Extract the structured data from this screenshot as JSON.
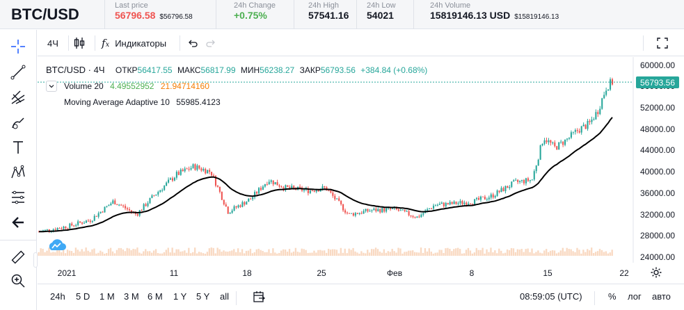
{
  "header": {
    "pair": "BTC/USD",
    "last_price_label": "Last price",
    "last_price": "56796.58",
    "last_price_sub": "$56796.58",
    "change_label": "24h Change",
    "change": "+0.75%",
    "high_label": "24h High",
    "high": "57541.16",
    "low_label": "24h Low",
    "low": "54021",
    "volume_label": "24h Volume",
    "volume": "15819146.13 USD",
    "volume_sub": "$15819146.13"
  },
  "toolbar": {
    "interval": "4Ч",
    "indicators_label": "Индикаторы"
  },
  "legend": {
    "symbol": "BTC/USD · 4Ч",
    "open_label": "ОТКР",
    "open": "56417.55",
    "high_label": "МАКС",
    "high": "56817.99",
    "low_label": "МИН",
    "low": "56238.27",
    "close_label": "ЗАКР",
    "close": "56793.56",
    "change": "+384.84 (+0.68%)",
    "volume_name": "Volume 20",
    "volume_v1": "4.49552952",
    "volume_v2": "21.94714160",
    "ma_name": "Moving Average Adaptive 10",
    "ma_value": "55985.4123"
  },
  "price_axis": {
    "ticks": [
      "60000.00",
      "56000.00",
      "52000.00",
      "48000.00",
      "44000.00",
      "40000.00",
      "36000.00",
      "32000.00",
      "28000.00",
      "24000.00"
    ],
    "last_label": "56793.56"
  },
  "time_axis": {
    "ticks": [
      "2021",
      "11",
      "18",
      "25",
      "Фев",
      "8",
      "15",
      "22"
    ]
  },
  "bottom": {
    "ranges": [
      "24h",
      "5 D",
      "1 M",
      "3 M",
      "6 M",
      "1 Y",
      "5 Y",
      "all"
    ],
    "clock": "08:59:05 (UTC)",
    "percent": "%",
    "log": "лог",
    "auto": "авто"
  },
  "colors": {
    "up": "#26a69a",
    "down": "#ef5350",
    "ma": "#000000",
    "volume": "#f7c9a8",
    "accent": "#2962ff"
  },
  "chart_data": {
    "type": "candlestick",
    "interval": "4h",
    "price_range": [
      23500,
      61500
    ],
    "key_closes": [
      {
        "t": 0,
        "v": 28800
      },
      {
        "t": 0.05,
        "v": 29800
      },
      {
        "t": 0.09,
        "v": 31000
      },
      {
        "t": 0.13,
        "v": 34500
      },
      {
        "t": 0.17,
        "v": 32000
      },
      {
        "t": 0.2,
        "v": 35500
      },
      {
        "t": 0.24,
        "v": 39500
      },
      {
        "t": 0.27,
        "v": 41000
      },
      {
        "t": 0.3,
        "v": 40000
      },
      {
        "t": 0.33,
        "v": 32500
      },
      {
        "t": 0.37,
        "v": 35000
      },
      {
        "t": 0.4,
        "v": 38500
      },
      {
        "t": 0.43,
        "v": 37000
      },
      {
        "t": 0.47,
        "v": 36500
      },
      {
        "t": 0.5,
        "v": 37000
      },
      {
        "t": 0.54,
        "v": 32000
      },
      {
        "t": 0.58,
        "v": 32800
      },
      {
        "t": 0.62,
        "v": 33000
      },
      {
        "t": 0.66,
        "v": 31500
      },
      {
        "t": 0.69,
        "v": 33800
      },
      {
        "t": 0.72,
        "v": 34000
      },
      {
        "t": 0.76,
        "v": 34500
      },
      {
        "t": 0.79,
        "v": 35500
      },
      {
        "t": 0.83,
        "v": 38000
      },
      {
        "t": 0.86,
        "v": 38500
      },
      {
        "t": 0.88,
        "v": 46500
      },
      {
        "t": 0.9,
        "v": 44500
      },
      {
        "t": 0.92,
        "v": 46000
      },
      {
        "t": 0.94,
        "v": 47800
      },
      {
        "t": 0.96,
        "v": 49000
      },
      {
        "t": 0.975,
        "v": 51500
      },
      {
        "t": 0.99,
        "v": 56000
      },
      {
        "t": 1,
        "v": 56793.56
      }
    ]
  }
}
